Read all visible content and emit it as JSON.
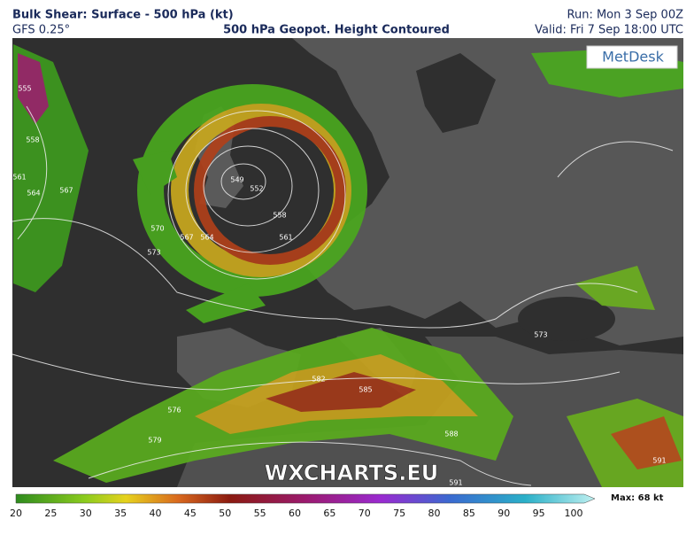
{
  "header": {
    "title": "Bulk Shear: Surface - 500 hPa (kt)",
    "model": "GFS 0.25°",
    "subtitle": "500 hPa Geopot. Height Contoured",
    "run": "Run: Mon 3 Sep 00Z",
    "valid": "Valid: Fri 7 Sep 18:00 UTC"
  },
  "map": {
    "logo": "MetDesk",
    "watermark": "WXCHARTS.EU",
    "contour_labels": [
      555,
      558,
      561,
      564,
      567,
      570,
      573,
      549,
      552,
      558,
      561,
      564,
      567,
      573,
      576,
      579,
      582,
      585,
      588,
      591,
      591
    ]
  },
  "colorbar": {
    "ticks": [
      20,
      25,
      30,
      35,
      40,
      45,
      50,
      55,
      60,
      65,
      70,
      75,
      80,
      85,
      90,
      95,
      100
    ],
    "max_label": "Max: 68 kt"
  }
}
